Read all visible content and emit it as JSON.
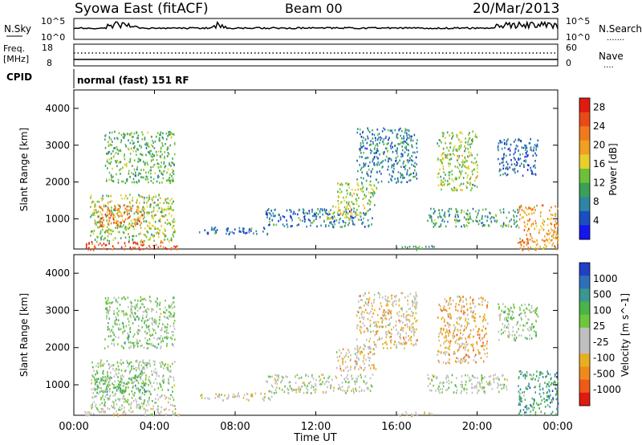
{
  "header": {
    "title": "Syowa East (fitACF)",
    "beam": "Beam 00",
    "date": "20/Mar/2013"
  },
  "sky_panel": {
    "left_label": "N.Sky",
    "right_label": "N.Search",
    "right_label_legend": ".......",
    "y_top_left": "10^5",
    "y_bottom_left": "10^0",
    "y_top_right": "10^5",
    "y_bottom_right": "10^0"
  },
  "freq_panel": {
    "left_label_top": "Freq.",
    "left_label_unit": "[MHz]",
    "right_label": "Nave",
    "right_label_legend": "....",
    "y_top_left": "18",
    "y_bottom_left": "8",
    "y_top_right": "60",
    "y_bottom_right": "0"
  },
  "cpid_panel": {
    "label": "CPID",
    "mode_text": "normal (fast) 151 RF"
  },
  "x_axis": {
    "ticks": [
      "00:00",
      "04:00",
      "08:00",
      "12:00",
      "16:00",
      "20:00",
      "00:00"
    ],
    "label": "Time UT"
  },
  "power_panel": {
    "ylabel": "Slant Range [km]",
    "yticks": [
      "1000",
      "2000",
      "3000",
      "4000"
    ],
    "colorbar_label": "Power [dB]",
    "colorbar_ticks": [
      "4",
      "8",
      "12",
      "16",
      "20",
      "24",
      "28"
    ],
    "colorbar_colors": [
      "#1515ee",
      "#1b4fbf",
      "#2e86a6",
      "#3aa055",
      "#6cc138",
      "#e8d02a",
      "#f0a020",
      "#f07a1c",
      "#e84a18",
      "#e01a10"
    ]
  },
  "velocity_panel": {
    "ylabel": "Slant Range [km]",
    "yticks": [
      "1000",
      "2000",
      "3000",
      "4000"
    ],
    "colorbar_label": "Velocity [m s^-1]",
    "colorbar_ticks": [
      "1000",
      "500",
      "100",
      "25",
      "-25",
      "-100",
      "-500",
      "-1000"
    ],
    "colorbar_colors": [
      "#2040c8",
      "#2e70b8",
      "#3a9890",
      "#4ab448",
      "#6cc83a",
      "#bfbfbf",
      "#bfbfbf",
      "#e8b020",
      "#f08a1c",
      "#ee5a18",
      "#e01a10"
    ]
  },
  "chart_data": [
    {
      "type": "heatmap",
      "title": "Syowa East (fitACF)  Beam 00  20/Mar/2013",
      "quantity": "Power",
      "xlabel": "Time UT",
      "ylabel": "Slant Range [km]",
      "xlim_hours": [
        0,
        24
      ],
      "ylim_km": [
        180,
        4500
      ],
      "colorbar": {
        "label": "Power [dB]",
        "range": [
          0,
          30
        ],
        "ticks": [
          4,
          8,
          12,
          16,
          20,
          24,
          28
        ]
      },
      "regions": [
        {
          "t": [
            0.8,
            5.0
          ],
          "r": [
            400,
            1700
          ],
          "v": 14
        },
        {
          "t": [
            1.0,
            3.5
          ],
          "r": [
            800,
            1400
          ],
          "v": 22
        },
        {
          "t": [
            0.5,
            5.2
          ],
          "r": [
            180,
            400
          ],
          "v": 26
        },
        {
          "t": [
            1.5,
            5.0
          ],
          "r": [
            2000,
            3400
          ],
          "v": 12
        },
        {
          "t": [
            6.2,
            9.8
          ],
          "r": [
            600,
            800
          ],
          "v": 6
        },
        {
          "t": [
            9.5,
            14.8
          ],
          "r": [
            800,
            1300
          ],
          "v": 7
        },
        {
          "t": [
            12.5,
            14.5
          ],
          "r": [
            1000,
            1400
          ],
          "v": 16
        },
        {
          "t": [
            13.0,
            15.0
          ],
          "r": [
            1400,
            2000
          ],
          "v": 14
        },
        {
          "t": [
            14.0,
            17.0
          ],
          "r": [
            2000,
            3500
          ],
          "v": 8
        },
        {
          "t": [
            16.0,
            18.0
          ],
          "r": [
            180,
            300
          ],
          "v": 10
        },
        {
          "t": [
            17.5,
            22.0
          ],
          "r": [
            800,
            1300
          ],
          "v": 10
        },
        {
          "t": [
            18.0,
            20.0
          ],
          "r": [
            1800,
            3400
          ],
          "v": 14
        },
        {
          "t": [
            22.0,
            24.0
          ],
          "r": [
            180,
            1400
          ],
          "v": 20
        },
        {
          "t": [
            21.0,
            23.0
          ],
          "r": [
            2200,
            3200
          ],
          "v": 6
        }
      ]
    },
    {
      "type": "heatmap",
      "quantity": "Velocity",
      "xlabel": "Time UT",
      "ylabel": "Slant Range [km]",
      "xlim_hours": [
        0,
        24
      ],
      "ylim_km": [
        180,
        4500
      ],
      "colorbar": {
        "label": "Velocity [m s^-1]",
        "range": [
          -1000,
          1000
        ],
        "ticks": [
          1000,
          500,
          100,
          25,
          -25,
          -100,
          -500,
          -1000
        ]
      },
      "regions": [
        {
          "t": [
            0.8,
            5.0
          ],
          "r": [
            400,
            1700
          ],
          "v": 80
        },
        {
          "t": [
            1.0,
            3.5
          ],
          "r": [
            800,
            1400
          ],
          "v": 300
        },
        {
          "t": [
            0.5,
            5.2
          ],
          "r": [
            180,
            400
          ],
          "v": -150
        },
        {
          "t": [
            1.5,
            5.0
          ],
          "r": [
            2000,
            3400
          ],
          "v": 150
        },
        {
          "t": [
            6.2,
            9.8
          ],
          "r": [
            600,
            800
          ],
          "v": -200
        },
        {
          "t": [
            9.5,
            14.8
          ],
          "r": [
            800,
            1300
          ],
          "v": 0
        },
        {
          "t": [
            13.0,
            15.0
          ],
          "r": [
            1400,
            2000
          ],
          "v": -300
        },
        {
          "t": [
            14.0,
            17.0
          ],
          "r": [
            2000,
            3500
          ],
          "v": -250
        },
        {
          "t": [
            16.0,
            18.0
          ],
          "r": [
            180,
            300
          ],
          "v": -200
        },
        {
          "t": [
            17.5,
            21.5
          ],
          "r": [
            800,
            1300
          ],
          "v": 0
        },
        {
          "t": [
            18.0,
            20.5
          ],
          "r": [
            1600,
            3400
          ],
          "v": -350
        },
        {
          "t": [
            22.0,
            24.0
          ],
          "r": [
            180,
            1400
          ],
          "v": 500
        },
        {
          "t": [
            21.0,
            23.0
          ],
          "r": [
            2200,
            3200
          ],
          "v": 100
        }
      ]
    }
  ]
}
